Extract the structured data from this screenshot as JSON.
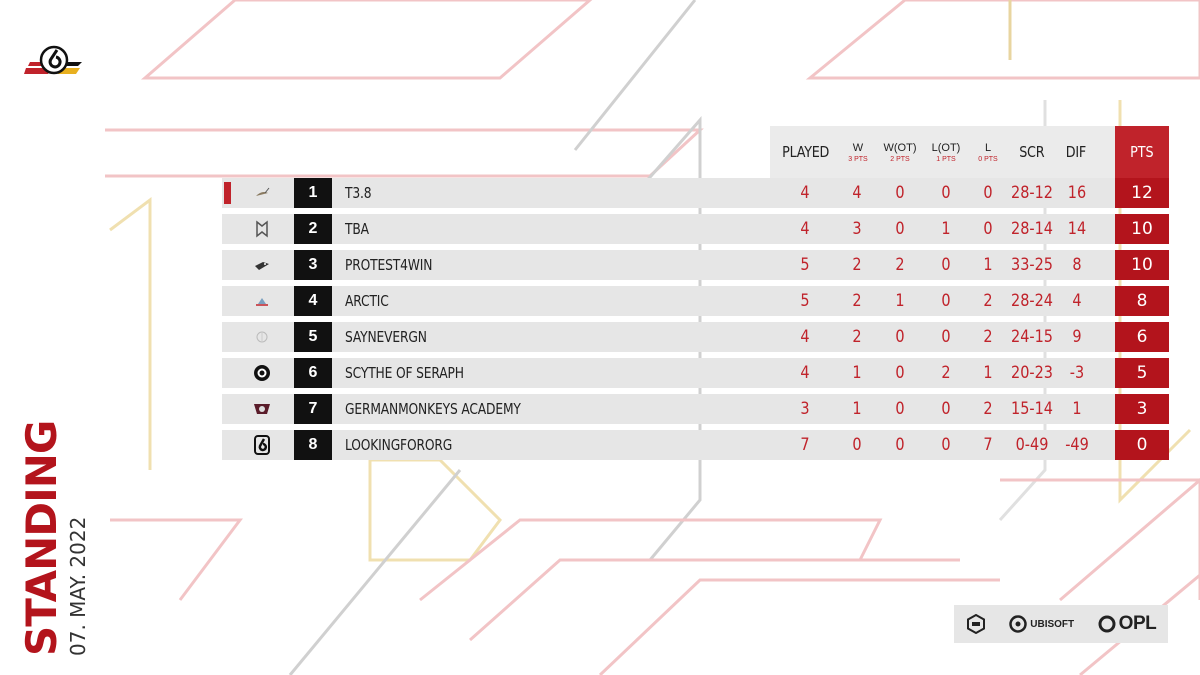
{
  "title": "STANDING",
  "date": "07. MAY. 2022",
  "header": {
    "played": "PLAYED",
    "w": "W",
    "w_sub": "3 PTS",
    "wot": "W(OT)",
    "wot_sub": "2 PTS",
    "lot": "L(OT)",
    "lot_sub": "1 PTS",
    "l": "L",
    "l_sub": "0 PTS",
    "scr": "SCR",
    "dif": "DIF",
    "pts": "PTS"
  },
  "rows": [
    {
      "rank": "1",
      "team": "T3.8",
      "played": "4",
      "w": "4",
      "wot": "0",
      "lot": "0",
      "l": "0",
      "scr": "28-12",
      "dif": "16",
      "pts": "12",
      "logo": "heron-icon"
    },
    {
      "rank": "2",
      "team": "TBA",
      "played": "4",
      "w": "3",
      "wot": "0",
      "lot": "1",
      "l": "0",
      "scr": "28-14",
      "dif": "14",
      "pts": "10",
      "logo": "wings-icon"
    },
    {
      "rank": "3",
      "team": "PROTEST4WIN",
      "played": "5",
      "w": "2",
      "wot": "2",
      "lot": "0",
      "l": "1",
      "scr": "33-25",
      "dif": "8",
      "pts": "10",
      "logo": "bird-icon"
    },
    {
      "rank": "4",
      "team": "ARCTIC",
      "played": "5",
      "w": "2",
      "wot": "1",
      "lot": "0",
      "l": "2",
      "scr": "28-24",
      "dif": "4",
      "pts": "8",
      "logo": "snowflake-icon"
    },
    {
      "rank": "5",
      "team": "SAYNEVERGN",
      "played": "4",
      "w": "2",
      "wot": "0",
      "lot": "0",
      "l": "2",
      "scr": "24-15",
      "dif": "9",
      "pts": "6",
      "logo": "ball-icon"
    },
    {
      "rank": "6",
      "team": "SCYTHE OF SERAPH",
      "played": "4",
      "w": "1",
      "wot": "0",
      "lot": "2",
      "l": "1",
      "scr": "20-23",
      "dif": "-3",
      "pts": "5",
      "logo": "ring-icon"
    },
    {
      "rank": "7",
      "team": "GERMANMONKEYS ACADEMY",
      "played": "3",
      "w": "1",
      "wot": "0",
      "lot": "0",
      "l": "2",
      "scr": "15-14",
      "dif": "1",
      "pts": "3",
      "logo": "monkey-icon"
    },
    {
      "rank": "8",
      "team": "LOOKINGFORORG",
      "played": "7",
      "w": "0",
      "wot": "0",
      "lot": "0",
      "l": "7",
      "scr": "0-49",
      "dif": "-49",
      "pts": "0",
      "logo": "six-icon"
    }
  ],
  "sponsors": {
    "ubisoft": "UBISOFT",
    "opl": "OPL"
  },
  "colors": {
    "accent": "#c0232b",
    "pts_bg": "#b3141c",
    "row_bg": "#e6e6e6",
    "rank_bg": "#111111"
  }
}
